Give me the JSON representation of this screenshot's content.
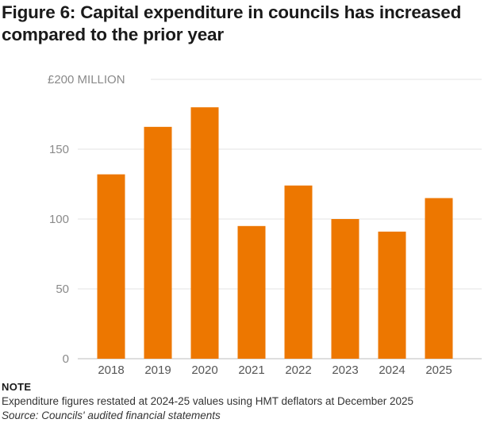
{
  "figure_title": "Figure 6: Capital expenditure in councils has increased compared to the prior year",
  "chart_data": {
    "type": "bar",
    "categories": [
      "2018",
      "2019",
      "2020",
      "2021",
      "2022",
      "2023",
      "2024",
      "2025"
    ],
    "values": [
      132,
      166,
      180,
      95,
      124,
      100,
      91,
      115
    ],
    "ylim": [
      0,
      200
    ],
    "yticks": [
      {
        "value": 0,
        "label": "0"
      },
      {
        "value": 50,
        "label": "50"
      },
      {
        "value": 100,
        "label": "100"
      },
      {
        "value": 150,
        "label": "150"
      },
      {
        "value": 200,
        "label": "£200 MILLION"
      }
    ],
    "grid": true,
    "bar_color": "#ed7700",
    "grid_color": "#e3e3e3"
  },
  "note": {
    "heading": "NOTE",
    "text": "Expenditure figures restated at 2024-25 values using HMT deflators at December 2025",
    "source": "Source: Councils' audited financial statements"
  }
}
